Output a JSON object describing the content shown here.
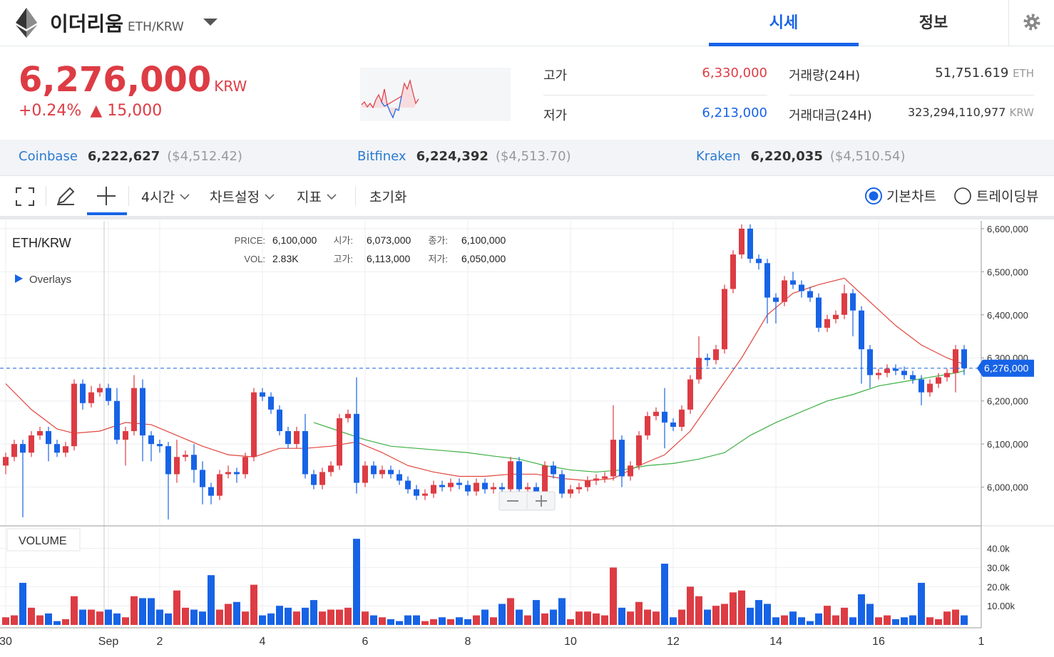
{
  "header": {
    "name": "이더리움",
    "pair": "ETH/KRW",
    "tabs": [
      "시세",
      "정보"
    ]
  },
  "ticker": {
    "price": "6,276,000",
    "currency": "KRW",
    "change_rate": "+0.24%",
    "change": "▲ 15,000",
    "stats": [
      {
        "label": "고가",
        "value": "6,330,000"
      },
      {
        "label": "저가",
        "value": "6,213,000"
      },
      {
        "label": "거래량(24H)",
        "value": "51,751.619",
        "unit": "ETH"
      },
      {
        "label": "거래대금(24H)",
        "value": "323,294,110,977",
        "unit": "KRW"
      }
    ]
  },
  "exchanges": [
    {
      "name": "Coinbase",
      "price": "6,222,627",
      "usd": "($4,512.42)"
    },
    {
      "name": "Bitfinex",
      "price": "6,224,392",
      "usd": "($4,513.70)"
    },
    {
      "name": "Kraken",
      "price": "6,220,035",
      "usd": "($4,510.54)"
    }
  ],
  "toolbar": {
    "interval": "4시간",
    "settings": "차트설정",
    "indicators": "지표",
    "reset": "초기화",
    "modes": [
      "기본차트",
      "트레이딩뷰"
    ]
  },
  "chart_data": {
    "type": "candlestick",
    "title": "ETH/KRW",
    "overlays": "Overlays",
    "up_color": "#dd3c44",
    "down_color": "#1763e6",
    "grid": true,
    "ohlc_legend": [
      {
        "label": "PRICE:",
        "value": "6,100,000"
      },
      {
        "label": "VOL:",
        "value": "2.83K"
      },
      {
        "label": "시가:",
        "value": "6,073,000"
      },
      {
        "label": "고가:",
        "value": "6,113,000"
      },
      {
        "label": "종가:",
        "value": "6,100,000"
      },
      {
        "label": "저가:",
        "value": "6,050,000"
      }
    ],
    "categories": [
      "30",
      null,
      null,
      null,
      null,
      null,
      null,
      null,
      null,
      null,
      null,
      null,
      "Sep",
      null,
      null,
      null,
      null,
      null,
      "2",
      null,
      null,
      null,
      null,
      null,
      null,
      null,
      null,
      null,
      null,
      null,
      "4",
      null,
      null,
      null,
      null,
      null,
      null,
      null,
      null,
      null,
      null,
      null,
      "6",
      null,
      null,
      null,
      null,
      null,
      null,
      null,
      null,
      null,
      null,
      null,
      "8",
      null,
      null,
      null,
      null,
      null,
      null,
      null,
      null,
      null,
      null,
      null,
      "10",
      null,
      null,
      null,
      null,
      null,
      null,
      null,
      null,
      null,
      null,
      null,
      "12",
      null,
      null,
      null,
      null,
      null,
      null,
      null,
      null,
      null,
      null,
      null,
      "14",
      null,
      null,
      null,
      null,
      null,
      null,
      null,
      null,
      null,
      null,
      null,
      "16",
      null,
      null,
      null,
      null,
      null,
      null,
      null,
      null,
      null,
      null,
      null,
      "1"
    ],
    "open": [
      6050000,
      6070000,
      6100000,
      6080000,
      6120000,
      6130000,
      6100000,
      6080000,
      6095000,
      6240000,
      6195000,
      6220000,
      6230000,
      6200000,
      6110000,
      6130000,
      6230000,
      6120000,
      6100000,
      6095000,
      6030000,
      6070000,
      6075000,
      6040000,
      6000000,
      5980000,
      6030000,
      6035000,
      6030000,
      6070000,
      6220000,
      6210000,
      6180000,
      6130000,
      6100000,
      6130000,
      6030000,
      6005000,
      6035000,
      6050000,
      6160000,
      6170000,
      6010000,
      6050000,
      6030000,
      6040000,
      6030000,
      6015000,
      5995000,
      5980000,
      5985000,
      6005000,
      6000000,
      6010000,
      6005000,
      5990000,
      6010000,
      5995000,
      6000000,
      5995000,
      6060000,
      5995000,
      6000000,
      5990000,
      6050000,
      6030000,
      5985000,
      5995000,
      6000000,
      6015000,
      6020000,
      6025000,
      6110000,
      6025000,
      6050000,
      6120000,
      6165000,
      6175000,
      6150000,
      6140000,
      6180000,
      6250000,
      6300000,
      6295000,
      6320000,
      6460000,
      6540000,
      6600000,
      6530000,
      6520000,
      6440000,
      6430000,
      6480000,
      6470000,
      6455000,
      6440000,
      6370000,
      6390000,
      6400000,
      6450000,
      6410000,
      6320000,
      6260000,
      6265000,
      6275000,
      6270000,
      6260000,
      6250000,
      6220000,
      6240000,
      6255000,
      6265000,
      6320000,
      null,
      null
    ],
    "high": [
      6080000,
      6110000,
      6110000,
      6130000,
      6140000,
      6140000,
      6110000,
      6105000,
      6250000,
      6250000,
      6235000,
      6240000,
      6240000,
      6230000,
      6140000,
      6260000,
      6250000,
      6130000,
      6110000,
      6105000,
      6110000,
      6085000,
      6100000,
      6060000,
      6010000,
      6040000,
      6050000,
      6045000,
      6080000,
      6230000,
      6230000,
      6220000,
      6190000,
      6140000,
      6140000,
      6170000,
      6040000,
      6045000,
      6060000,
      6170000,
      6180000,
      6255000,
      6060000,
      6060000,
      6050000,
      6050000,
      6040000,
      6025000,
      6005000,
      5995000,
      6015000,
      6015000,
      6020000,
      6020000,
      6015000,
      6020000,
      6020000,
      6010000,
      6010000,
      6070000,
      6070000,
      6010000,
      6010000,
      6060000,
      6060000,
      6040000,
      6005000,
      6010000,
      6025000,
      6030000,
      6035000,
      6190000,
      6120000,
      6060000,
      6130000,
      6175000,
      6185000,
      6230000,
      6160000,
      6190000,
      6260000,
      6350000,
      6310000,
      6330000,
      6470000,
      6550000,
      6610000,
      6610000,
      6540000,
      6530000,
      6450000,
      6490000,
      6500000,
      6480000,
      6465000,
      6450000,
      6400000,
      6410000,
      6470000,
      6460000,
      6420000,
      6330000,
      6275000,
      6285000,
      6285000,
      6280000,
      6270000,
      6260000,
      6250000,
      6265000,
      6275000,
      6330000,
      6330000,
      null,
      null
    ],
    "low": [
      6030000,
      6060000,
      5930000,
      6070000,
      6110000,
      6060000,
      6070000,
      6070000,
      6085000,
      6180000,
      6185000,
      6210000,
      6190000,
      6100000,
      6050000,
      6120000,
      6060000,
      6060000,
      6080000,
      5925000,
      6010000,
      6060000,
      6010000,
      5960000,
      5960000,
      5970000,
      6020000,
      6010000,
      6020000,
      6060000,
      6200000,
      6170000,
      6120000,
      6090000,
      6090000,
      6020000,
      5995000,
      5995000,
      6025000,
      6040000,
      6150000,
      5985000,
      6000000,
      6020000,
      6020000,
      6020000,
      6005000,
      5985000,
      5970000,
      5970000,
      5975000,
      5990000,
      5990000,
      5995000,
      5980000,
      5980000,
      5985000,
      5985000,
      5985000,
      5985000,
      5985000,
      5985000,
      5980000,
      5980000,
      6020000,
      5975000,
      5975000,
      5985000,
      5990000,
      6005000,
      6010000,
      6015000,
      6000000,
      6015000,
      6040000,
      6110000,
      6155000,
      6090000,
      6130000,
      6130000,
      6170000,
      6240000,
      6280000,
      6285000,
      6310000,
      6450000,
      6530000,
      6520000,
      6505000,
      6380000,
      6380000,
      6420000,
      6460000,
      6440000,
      6430000,
      6360000,
      6360000,
      6380000,
      6390000,
      6350000,
      6240000,
      6230000,
      6250000,
      6255000,
      6260000,
      6250000,
      6240000,
      6190000,
      6210000,
      6230000,
      6245000,
      6220000,
      6260000,
      null,
      null
    ],
    "close": [
      6070000,
      6100000,
      6080000,
      6120000,
      6130000,
      6100000,
      6080000,
      6095000,
      6240000,
      6195000,
      6220000,
      6230000,
      6200000,
      6110000,
      6130000,
      6230000,
      6120000,
      6100000,
      6095000,
      6030000,
      6070000,
      6075000,
      6040000,
      6000000,
      5980000,
      6030000,
      6035000,
      6030000,
      6070000,
      6220000,
      6210000,
      6180000,
      6130000,
      6100000,
      6130000,
      6030000,
      6005000,
      6035000,
      6050000,
      6160000,
      6170000,
      6010000,
      6050000,
      6030000,
      6040000,
      6030000,
      6015000,
      5995000,
      5980000,
      5985000,
      6005000,
      6000000,
      6010000,
      6005000,
      5990000,
      6010000,
      5995000,
      6000000,
      5995000,
      6060000,
      5995000,
      6000000,
      5990000,
      6050000,
      6030000,
      5985000,
      5995000,
      6000000,
      6015000,
      6020000,
      6025000,
      6110000,
      6025000,
      6050000,
      6120000,
      6165000,
      6175000,
      6150000,
      6140000,
      6180000,
      6250000,
      6300000,
      6295000,
      6320000,
      6460000,
      6540000,
      6600000,
      6530000,
      6520000,
      6440000,
      6430000,
      6480000,
      6470000,
      6455000,
      6440000,
      6370000,
      6390000,
      6400000,
      6450000,
      6410000,
      6320000,
      6260000,
      6265000,
      6275000,
      6270000,
      6260000,
      6250000,
      6220000,
      6240000,
      6255000,
      6265000,
      6320000,
      6276000,
      null,
      null
    ],
    "ylim": [
      5910000,
      6618000
    ],
    "yticks": [
      {
        "value": 6000000,
        "label": "6,000,000"
      },
      {
        "value": 6100000,
        "label": "6,100,000"
      },
      {
        "value": 6200000,
        "label": "6,200,000"
      },
      {
        "value": 6300000,
        "label": "6,300,000"
      },
      {
        "value": 6400000,
        "label": "6,400,000"
      },
      {
        "value": 6500000,
        "label": "6,500,000"
      },
      {
        "value": 6600000,
        "label": "6,600,000"
      }
    ],
    "last_price": {
      "value": 6276000,
      "label": "6,276,000"
    },
    "moving_averages": [
      {
        "color": "#e0463c",
        "x": [
          0,
          3,
          6,
          8,
          11,
          14,
          17,
          20,
          23,
          26,
          29,
          32,
          35,
          38,
          41,
          44,
          47,
          50,
          53,
          56,
          59,
          62,
          65,
          68,
          71,
          74,
          77,
          80,
          83,
          86,
          89,
          92,
          95,
          98,
          101,
          104,
          107,
          110,
          112
        ],
        "values": [
          6240000,
          6180000,
          6135000,
          6125000,
          6130000,
          6150000,
          6145000,
          6120000,
          6095000,
          6075000,
          6070000,
          6090000,
          6090000,
          6095000,
          6105000,
          6080000,
          6050000,
          6035000,
          6025000,
          6025000,
          6030000,
          6030000,
          6020000,
          6015000,
          6020000,
          6050000,
          6075000,
          6130000,
          6215000,
          6300000,
          6400000,
          6450000,
          6470000,
          6485000,
          6430000,
          6375000,
          6330000,
          6300000,
          6285000
        ]
      },
      {
        "color": "#3cb043",
        "x": [
          36,
          39,
          42,
          45,
          48,
          51,
          54,
          57,
          60,
          63,
          66,
          69,
          72,
          75,
          78,
          81,
          84,
          87,
          90,
          93,
          96,
          99,
          102,
          105,
          108,
          111,
          112
        ],
        "values": [
          6150000,
          6130000,
          6110000,
          6095000,
          6090000,
          6085000,
          6080000,
          6072000,
          6065000,
          6050000,
          6040000,
          6035000,
          6040000,
          6050000,
          6055000,
          6065000,
          6080000,
          6120000,
          6150000,
          6175000,
          6200000,
          6215000,
          6235000,
          6245000,
          6255000,
          6265000,
          6270000
        ]
      }
    ],
    "volume": {
      "title": "VOLUME",
      "values": [
        4000,
        5000,
        22000,
        9000,
        5000,
        6000,
        2000,
        3000,
        15000,
        8000,
        8000,
        7000,
        8000,
        6000,
        4000,
        15000,
        14000,
        14000,
        8000,
        6000,
        18000,
        9000,
        8000,
        7000,
        26000,
        8000,
        11000,
        12000,
        7000,
        21000,
        5000,
        6000,
        10000,
        9000,
        7000,
        9000,
        13000,
        7000,
        8000,
        8000,
        9000,
        45000,
        7000,
        5000,
        4000,
        3000,
        2000,
        5000,
        5000,
        2000,
        3000,
        4000,
        3000,
        4000,
        3000,
        5000,
        8000,
        4000,
        11000,
        14000,
        8000,
        5000,
        13000,
        6000,
        8000,
        14000,
        3000,
        7000,
        7000,
        6000,
        5000,
        30000,
        9000,
        7000,
        12000,
        8000,
        7000,
        32000,
        4000,
        8000,
        20000,
        15000,
        8000,
        10000,
        11000,
        17000,
        18000,
        9000,
        13000,
        11000,
        4000,
        5000,
        7000,
        4000,
        2000,
        6000,
        10000,
        5000,
        9000,
        4000,
        16000,
        11000,
        4000,
        5000,
        3000,
        4000,
        5000,
        22000,
        4000,
        3000,
        7000,
        8000,
        5000,
        null,
        null
      ],
      "ylim": [
        0,
        51000
      ],
      "yticks": [
        {
          "value": 10000,
          "label": "10.00k"
        },
        {
          "value": 20000,
          "label": "20.0k"
        },
        {
          "value": 30000,
          "label": "30.0k"
        },
        {
          "value": 40000,
          "label": "40.0k"
        }
      ]
    }
  }
}
